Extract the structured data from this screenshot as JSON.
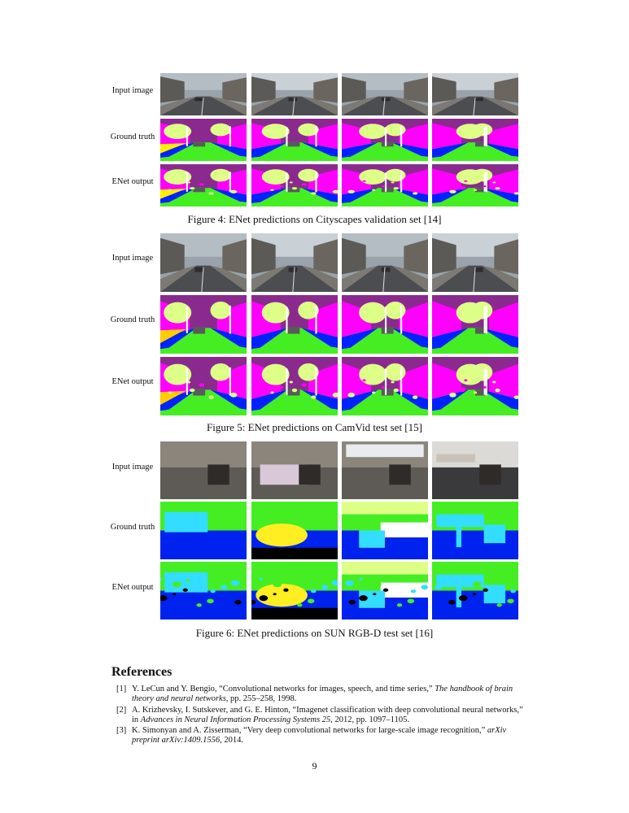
{
  "figures": [
    {
      "caption": "Figure 4: ENet predictions on Cityscapes validation set [14]",
      "row_labels": [
        "Input image",
        "Ground truth",
        "ENet output"
      ],
      "scene": "street",
      "colors": {
        "sky": "#8a2a8f",
        "building": "#ff00ff",
        "tree": "#ddff88",
        "road": "#44ee22",
        "sidewalk": "#0022ff",
        "car": "#5a5a5a",
        "pole": "#ffffff",
        "sign": "#ffee00"
      }
    },
    {
      "caption": "Figure 5: ENet predictions on CamVid test set [15]",
      "row_labels": [
        "Input image",
        "Ground truth",
        "ENet output"
      ],
      "scene": "street",
      "colors": {
        "sky": "#8a2a8f",
        "building": "#ff00ff",
        "tree": "#ddff88",
        "road": "#44ee22",
        "sidewalk": "#0022ff",
        "car": "#5a5a5a",
        "pole": "#ffffff",
        "sign": "#ffcc00"
      }
    },
    {
      "caption": "Figure 6: ENet predictions on SUN RGB-D test set [16]",
      "row_labels": [
        "Input image",
        "Ground truth",
        "ENet output"
      ],
      "scene": "indoor",
      "colors": {
        "wall": "#44ee22",
        "floor": "#0022ee",
        "chair": "#33ddff",
        "bed": "#ffee22",
        "window": "#ddff88",
        "table": "#ffffff",
        "dark": "#000000"
      }
    }
  ],
  "references": {
    "title": "References",
    "items": [
      {
        "num": "[1]",
        "pre": "Y. LeCun and Y. Bengio, “Convolutional networks for images, speech, and time series,” ",
        "ital": "The handbook of brain theory and neural networks",
        "post": ", pp. 255–258, 1998."
      },
      {
        "num": "[2]",
        "pre": "A. Krizhevsky, I. Sutskever, and G. E. Hinton, “Imagenet classification with deep convolutional neural networks,” in ",
        "ital": "Advances in Neural Information Processing Systems 25",
        "post": ", 2012, pp. 1097–1105."
      },
      {
        "num": "[3]",
        "pre": "K. Simonyan and A. Zisserman, “Very deep convolutional networks for large-scale image recognition,” ",
        "ital": "arXiv preprint arXiv:1409.1556",
        "post": ", 2014."
      }
    ]
  },
  "page_number": "9"
}
